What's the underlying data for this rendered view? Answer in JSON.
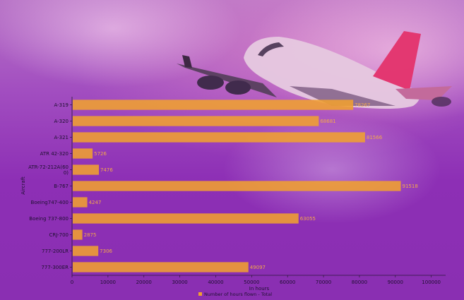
{
  "chart_data": {
    "type": "bar",
    "orientation": "horizontal",
    "categories": [
      "A-319",
      "A-320",
      "A-321",
      "ATR 42-320",
      "ATR-72-212A(600)",
      "B-767",
      "Boeing747-400",
      "Boeing 737-800",
      "CRJ-700",
      "777-200LR",
      "777-300ER"
    ],
    "category_display": [
      [
        "A-319"
      ],
      [
        "A-320"
      ],
      [
        "A-321"
      ],
      [
        "ATR 42-320"
      ],
      [
        "ATR-72-212A(60",
        "0)"
      ],
      [
        "B-767"
      ],
      [
        "Boeing747-400"
      ],
      [
        "Boeing 737-800"
      ],
      [
        "CRJ-700"
      ],
      [
        "777-200LR"
      ],
      [
        "777-300ER"
      ]
    ],
    "series": [
      {
        "name": "Number of hours flown - Total",
        "values": [
          78267,
          68681,
          81566,
          5726,
          7476,
          91518,
          4247,
          63055,
          2875,
          7306,
          49097
        ],
        "color": "#f0a030"
      }
    ],
    "data_labels": [
      "78267",
      "68681",
      "81566",
      "5726",
      "7476",
      "91518",
      "4247",
      "63055",
      "2875",
      "7306",
      "49097"
    ],
    "xlabel": "In hours",
    "ylabel": "Aircraft",
    "xlim": [
      0,
      104000
    ],
    "xticks": [
      0,
      10000,
      20000,
      30000,
      40000,
      50000,
      60000,
      70000,
      80000,
      90000,
      100000
    ],
    "legend_position": "bottom-center",
    "grid": false
  }
}
